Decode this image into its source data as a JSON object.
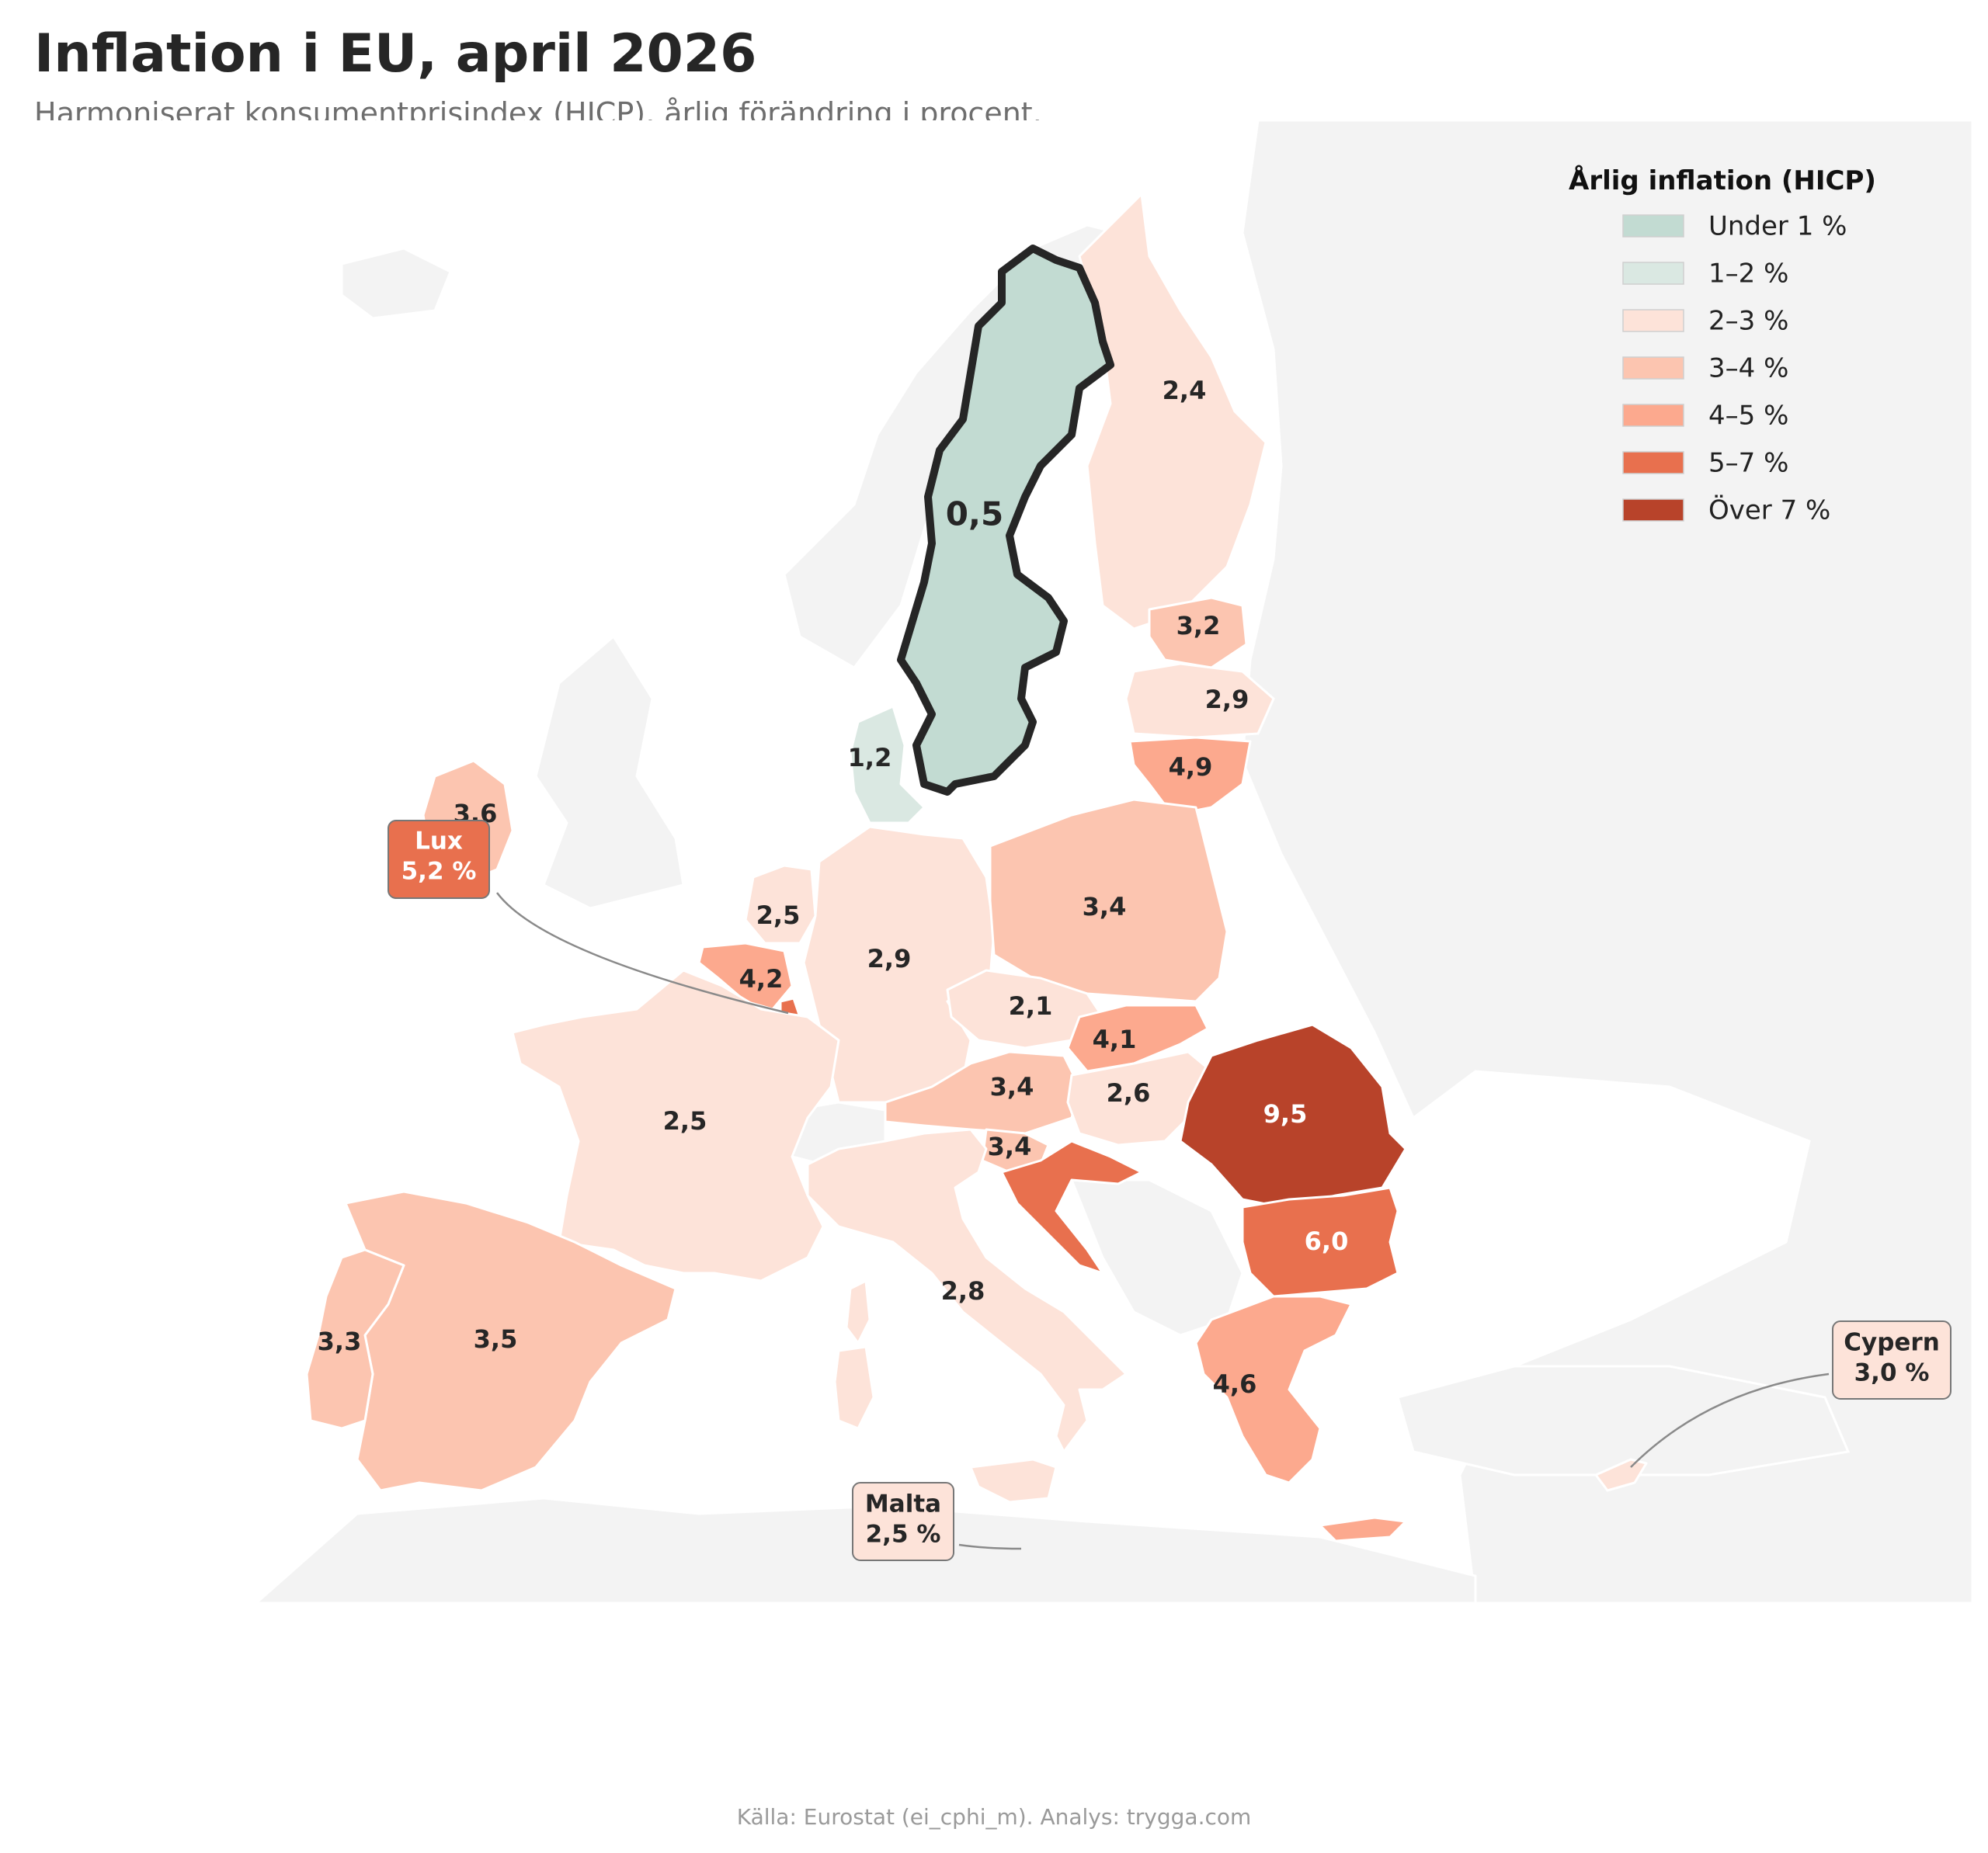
{
  "title": "Inflation i EU, april 2026",
  "subtitle": "Harmoniserat konsumentprisindex (HICP), årlig förändring i procent.",
  "source": "Källa: Eurostat (ei_cphi_m). Analys: trygga.com",
  "colors": {
    "background_land": "#f3f3f3",
    "highlight_outline": "#262626",
    "under1": "#c2dbd2",
    "1to2": "#dae8e2",
    "2to3": "#fde3d9",
    "3to4": "#fcc5b0",
    "4to5": "#fca98e",
    "5to7": "#e8704e",
    "over7": "#b8432a"
  },
  "legend": {
    "title": "Årlig inflation (HICP)",
    "items": [
      {
        "label": "Under 1 %",
        "color": "#c2dbd2"
      },
      {
        "label": "1–2 %",
        "color": "#dae8e2"
      },
      {
        "label": "2–3 %",
        "color": "#fde3d9"
      },
      {
        "label": "3–4 %",
        "color": "#fcc5b0"
      },
      {
        "label": "4–5 %",
        "color": "#fca98e"
      },
      {
        "label": "5–7 %",
        "color": "#e8704e"
      },
      {
        "label": "Över 7 %",
        "color": "#b8432a"
      }
    ]
  },
  "values": {
    "se": "0,5",
    "fi": "2,4",
    "ee": "3,2",
    "lv": "2,9",
    "lt": "4,9",
    "dk": "1,2",
    "ie": "3,6",
    "nl": "2,5",
    "be": "4,2",
    "de": "2,9",
    "pl": "3,4",
    "cz": "2,1",
    "sk": "4,1",
    "at": "3,4",
    "hu": "2,6",
    "ro": "9,5",
    "fr": "2,5",
    "si": "3,4",
    "bg": "6,0",
    "it": "2,8",
    "pt": "3,3",
    "es": "3,5",
    "gr": "4,6"
  },
  "callouts": {
    "lux_name": "Lux",
    "lux_value": "5,2 %",
    "malta_name": "Malta",
    "malta_value": "2,5 %",
    "cyprus_name": "Cypern",
    "cyprus_value": "3,0 %"
  }
}
